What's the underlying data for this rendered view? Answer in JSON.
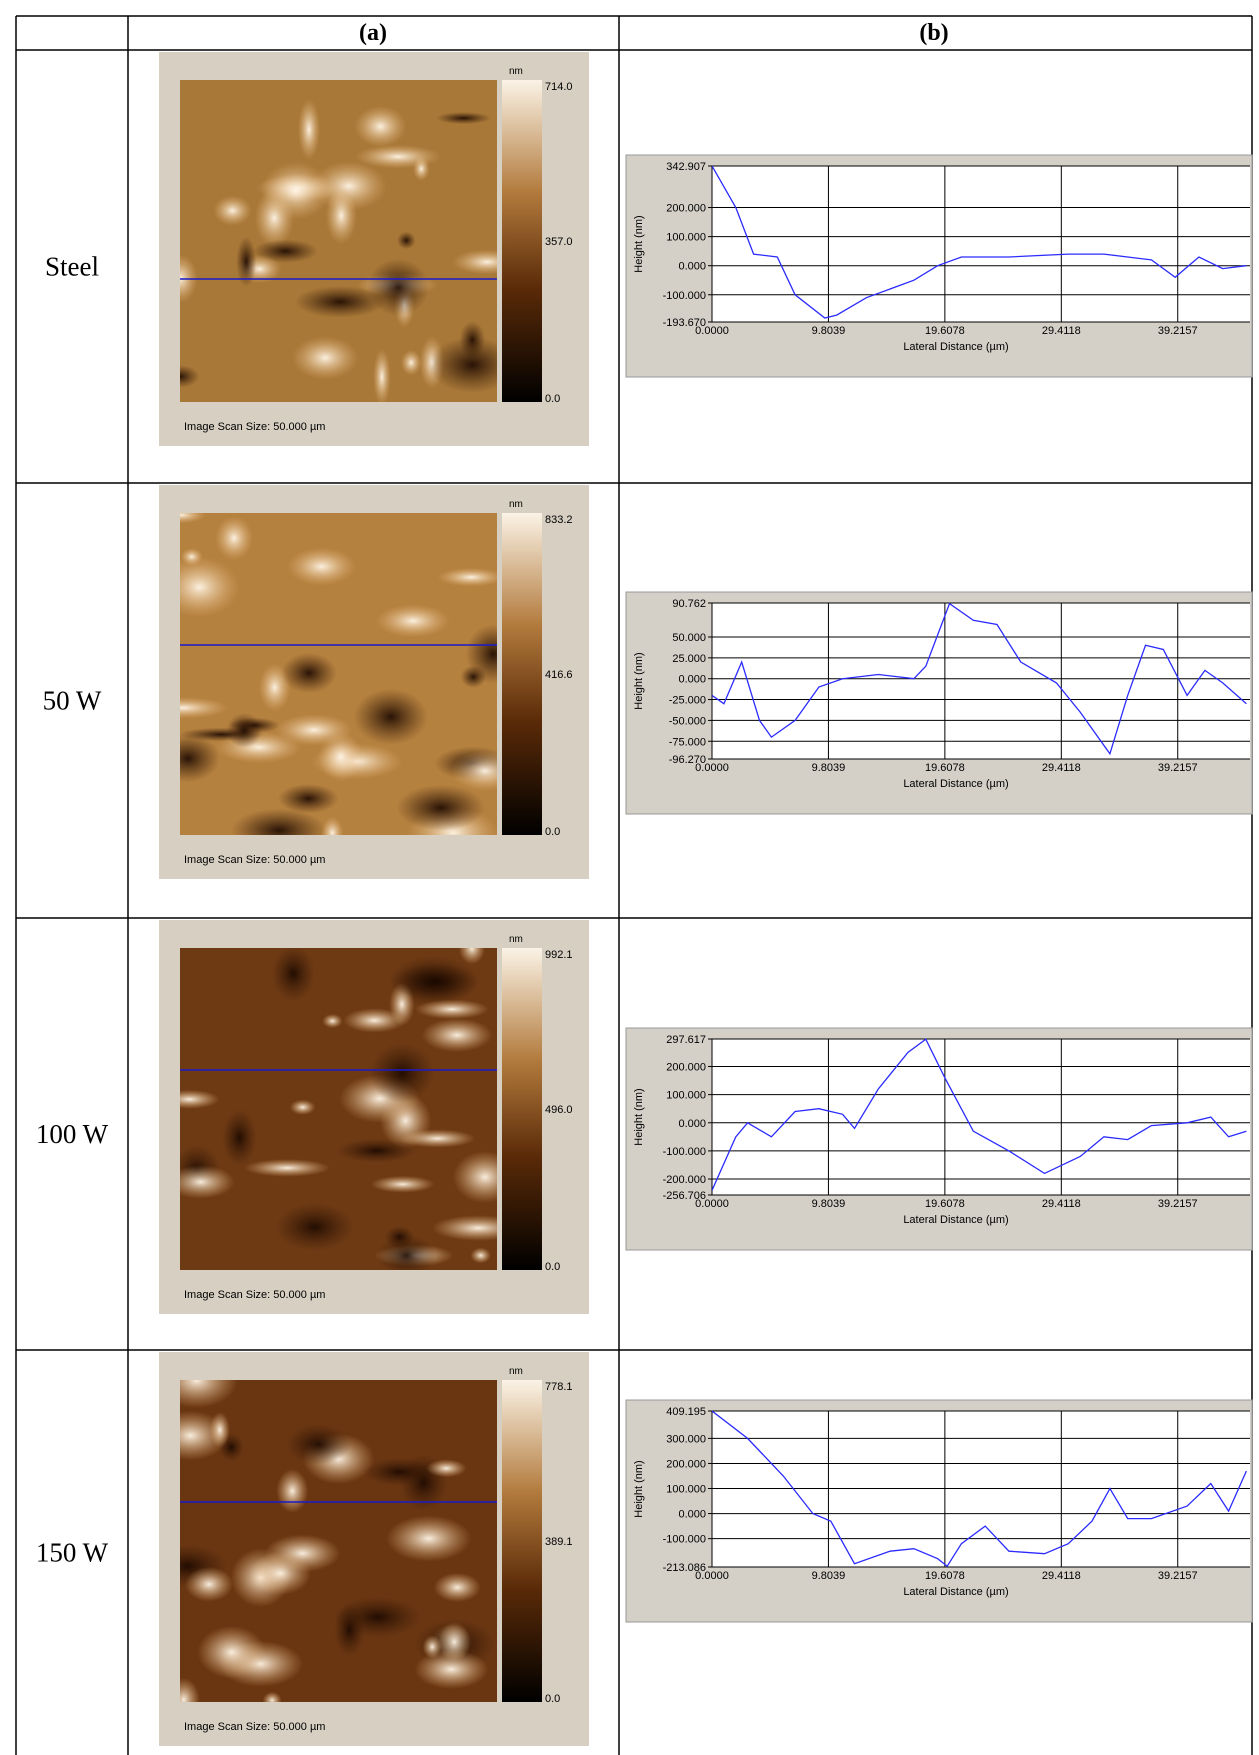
{
  "table": {
    "header": [
      "(a)",
      "(b)"
    ],
    "rows": [
      {
        "label": "Steel",
        "afm": {
          "unit": "nm",
          "max": "714.0",
          "mid": "357.0",
          "min": "0.0",
          "scan_size": "Image Scan Size:  50.000 µm"
        },
        "profile": {
          "type": "line",
          "y_label": "Height (nm)",
          "x_label": "Lateral Distance (µm)",
          "color": "#2b2bff",
          "grid": true,
          "xlim": [
            0,
            45.3
          ],
          "ylim": [
            -193.67,
            342.907
          ],
          "xticks": [
            {
              "value": 0,
              "label": "0.0000"
            },
            9.8039,
            19.6078,
            29.4118,
            39.2157
          ],
          "yticks": [
            {
              "value": 342.907,
              "label": "342.907"
            },
            {
              "value": 200,
              "label": "200.000"
            },
            {
              "value": 100,
              "label": "100.000"
            },
            {
              "value": 0,
              "label": "0.000"
            },
            {
              "value": -100,
              "label": "-100.000"
            },
            {
              "value": -193.67,
              "label": "-193.670"
            }
          ],
          "x": [
            0,
            2,
            3.5,
            5.5,
            7,
            9.5,
            10.5,
            13,
            17,
            19,
            21,
            25,
            30,
            33,
            37,
            39,
            41,
            43,
            45
          ],
          "values": [
            343,
            200,
            40,
            30,
            -100,
            -180,
            -170,
            -110,
            -50,
            0,
            30,
            30,
            40,
            40,
            20,
            -40,
            30,
            -10,
            0
          ]
        }
      },
      {
        "label": "50 W",
        "afm": {
          "unit": "nm",
          "max": "833.2",
          "mid": "416.6",
          "min": "0.0",
          "scan_size": "Image Scan Size:  50.000 µm"
        },
        "profile": {
          "type": "line",
          "y_label": "Height (nm)",
          "x_label": "Lateral Distance (µm)",
          "color": "#2b2bff",
          "grid": true,
          "xlim": [
            0,
            45.3
          ],
          "ylim": [
            -96.27,
            90.762
          ],
          "xticks": [
            {
              "value": 0,
              "label": "0.0000"
            },
            9.8039,
            19.6078,
            29.4118,
            39.2157
          ],
          "yticks": [
            {
              "value": 90.762,
              "label": "90.762"
            },
            {
              "value": 50,
              "label": "50.000"
            },
            {
              "value": 25,
              "label": "25.000"
            },
            {
              "value": 0,
              "label": "0.000"
            },
            {
              "value": -25,
              "label": "-25.000"
            },
            {
              "value": -50,
              "label": "-50.000"
            },
            {
              "value": -75,
              "label": "-75.000"
            },
            {
              "value": -96.27,
              "label": "-96.270"
            }
          ],
          "x": [
            0,
            1,
            2.5,
            4,
            5,
            7,
            9,
            11,
            14,
            17,
            18,
            20,
            22,
            24,
            26,
            29,
            31,
            33.5,
            35,
            36.5,
            38,
            40,
            41.5,
            43,
            45
          ],
          "values": [
            -20,
            -30,
            20,
            -50,
            -70,
            -50,
            -10,
            0,
            5,
            0,
            15,
            90,
            70,
            65,
            20,
            -5,
            -40,
            -90,
            -20,
            40,
            35,
            -20,
            10,
            -5,
            -30
          ]
        }
      },
      {
        "label": "100 W",
        "afm": {
          "unit": "nm",
          "max": "992.1",
          "mid": "496.0",
          "min": "0.0",
          "scan_size": "Image Scan Size:  50.000 µm"
        },
        "profile": {
          "type": "line",
          "y_label": "Height (nm)",
          "x_label": "Lateral Distance (µm)",
          "color": "#2b2bff",
          "grid": true,
          "xlim": [
            0,
            45.3
          ],
          "ylim": [
            -256.706,
            297.617
          ],
          "xticks": [
            {
              "value": 0,
              "label": "0.0000"
            },
            9.8039,
            19.6078,
            29.4118,
            39.2157
          ],
          "yticks": [
            {
              "value": 297.617,
              "label": "297.617"
            },
            {
              "value": 200,
              "label": "200.000"
            },
            {
              "value": 100,
              "label": "100.000"
            },
            {
              "value": 0,
              "label": "0.000"
            },
            {
              "value": -100,
              "label": "-100.000"
            },
            {
              "value": -200,
              "label": "-200.000"
            },
            {
              "value": -256.706,
              "label": "-256.706"
            }
          ],
          "x": [
            0,
            2,
            3,
            5,
            7,
            9,
            11,
            12,
            14,
            16.5,
            18,
            19.6,
            22,
            25,
            28,
            31,
            33,
            35,
            37,
            40,
            42,
            43.5,
            45
          ],
          "values": [
            -240,
            -50,
            0,
            -50,
            40,
            50,
            30,
            -20,
            120,
            250,
            297,
            160,
            -30,
            -100,
            -180,
            -120,
            -50,
            -60,
            -10,
            0,
            20,
            -50,
            -30
          ]
        }
      },
      {
        "label": "150 W",
        "afm": {
          "unit": "nm",
          "max": "778.1",
          "mid": "389.1",
          "min": "0.0",
          "scan_size": "Image Scan Size:  50.000 µm"
        },
        "profile": {
          "type": "line",
          "y_label": "Height (nm)",
          "x_label": "Lateral Distance (µm)",
          "color": "#2b2bff",
          "grid": true,
          "xlim": [
            0,
            45.3
          ],
          "ylim": [
            -213.086,
            409.195
          ],
          "xticks": [
            {
              "value": 0,
              "label": "0.0000"
            },
            9.8039,
            19.6078,
            29.4118,
            39.2157
          ],
          "yticks": [
            {
              "value": 409.195,
              "label": "409.195"
            },
            {
              "value": 300,
              "label": "300.000"
            },
            {
              "value": 200,
              "label": "200.000"
            },
            {
              "value": 100,
              "label": "100.000"
            },
            {
              "value": 0,
              "label": "0.000"
            },
            {
              "value": -100,
              "label": "-100.000"
            },
            {
              "value": -213.086,
              "label": "-213.086"
            }
          ],
          "x": [
            0,
            3,
            6,
            8.5,
            10,
            12,
            15,
            17,
            19,
            19.8,
            21,
            23,
            25,
            28,
            30,
            32,
            33.5,
            35,
            37,
            40,
            42,
            43.5,
            45
          ],
          "values": [
            409,
            300,
            150,
            0,
            -30,
            -200,
            -150,
            -140,
            -180,
            -210,
            -120,
            -50,
            -150,
            -160,
            -120,
            -30,
            100,
            -20,
            -20,
            30,
            120,
            10,
            170
          ]
        }
      }
    ]
  }
}
